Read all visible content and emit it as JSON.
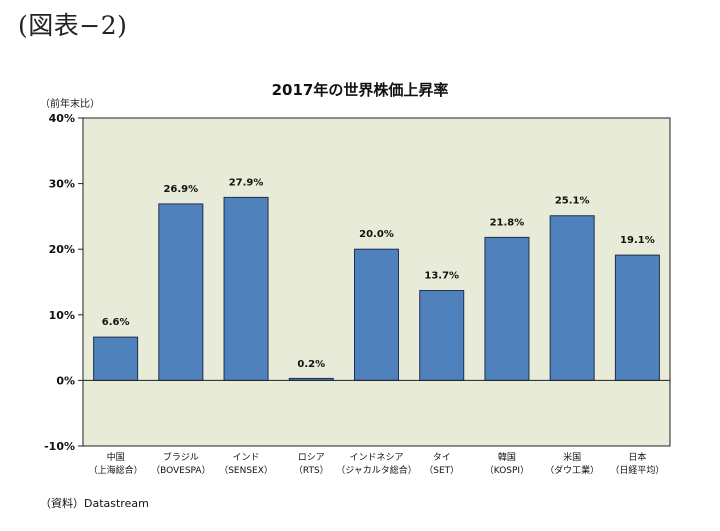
{
  "figure_label": "(図表−2)",
  "unit_note": "（前年末比）",
  "source_note": "（資料）Datastream",
  "colors": {
    "plot_bg": "#e8ebd7",
    "bar_fill": "#4f81bd",
    "bar_stroke": "#1f2f4f"
  },
  "chart_data": {
    "type": "bar",
    "title": "2017年の世界株価上昇率",
    "ylabel": "（前年末比）",
    "xlabel": "",
    "ylim": [
      -10,
      40
    ],
    "yticks": [
      -10,
      0,
      10,
      20,
      30,
      40
    ],
    "ytick_labels": [
      "-10%",
      "0%",
      "10%",
      "20%",
      "30%",
      "40%"
    ],
    "grid": false,
    "categories": [
      {
        "name": "中国",
        "sub": "（上海総合）"
      },
      {
        "name": "ブラジル",
        "sub": "（BOVESPA）"
      },
      {
        "name": "インド",
        "sub": "（SENSEX）"
      },
      {
        "name": "ロシア",
        "sub": "（RTS）"
      },
      {
        "name": "インドネシア",
        "sub": "（ジャカルタ総合）"
      },
      {
        "name": "タイ",
        "sub": "（SET）"
      },
      {
        "name": "韓国",
        "sub": "（KOSPI）"
      },
      {
        "name": "米国",
        "sub": "（ダウ工業）"
      },
      {
        "name": "日本",
        "sub": "（日経平均）"
      }
    ],
    "values": [
      6.6,
      26.9,
      27.9,
      0.2,
      20.0,
      13.7,
      21.8,
      25.1,
      19.1
    ],
    "value_labels": [
      "6.6%",
      "26.9%",
      "27.9%",
      "0.2%",
      "20.0%",
      "13.7%",
      "21.8%",
      "25.1%",
      "19.1%"
    ]
  }
}
